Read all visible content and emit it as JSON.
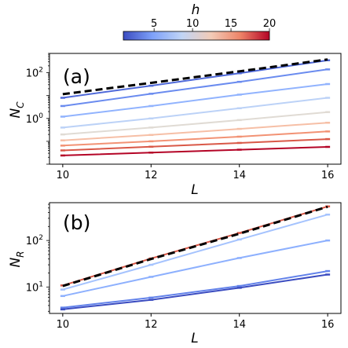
{
  "colorbar": {
    "label": "h",
    "range": [
      1,
      20
    ],
    "ticks": [
      "5",
      "10",
      "15",
      "20"
    ],
    "cmap": [
      "#3b4cc0",
      "#7ea1f9",
      "#c0d4f5",
      "#f2cbb7",
      "#ee8468",
      "#b40426"
    ]
  },
  "chart_data": [
    {
      "type": "line",
      "panel_label": "(a)",
      "xlabel": "L",
      "ylabel": "N_C",
      "ylabel_main": "N",
      "ylabel_sub": "C",
      "yscale": "log",
      "xlim": [
        9.7,
        16.3
      ],
      "ylim": [
        0.01,
        700
      ],
      "xticks": [
        "10",
        "12",
        "14",
        "16"
      ],
      "yticks": [
        {
          "value": 100,
          "base": "10",
          "exp": "2"
        },
        {
          "value": 1,
          "base": "10",
          "exp": "0"
        }
      ],
      "x": [
        10,
        12,
        14,
        16
      ],
      "reference": {
        "style": "black dashed",
        "values": [
          11.5,
          36,
          115,
          380
        ]
      },
      "series": [
        {
          "h": 1,
          "color": "#4f69d9",
          "values": [
            8.0,
            27,
            95,
            350
          ]
        },
        {
          "h": 3,
          "color": "#6a8bef",
          "values": [
            3.5,
            12,
            40,
            140
          ]
        },
        {
          "h": 5,
          "color": "#91b3fe",
          "values": [
            1.2,
            3.5,
            11,
            32
          ]
        },
        {
          "h": 7,
          "color": "#bcd2f7",
          "values": [
            0.4,
            1.0,
            2.8,
            8.0
          ]
        },
        {
          "h": 9,
          "color": "#e0dbd4",
          "values": [
            0.2,
            0.4,
            0.85,
            1.9
          ]
        },
        {
          "h": 11,
          "color": "#f6bfa6",
          "values": [
            0.11,
            0.19,
            0.35,
            0.65
          ]
        },
        {
          "h": 13,
          "color": "#f29274",
          "values": [
            0.065,
            0.1,
            0.16,
            0.27
          ]
        },
        {
          "h": 16,
          "color": "#d95847",
          "values": [
            0.04,
            0.058,
            0.085,
            0.125
          ]
        },
        {
          "h": 20,
          "color": "#b40426",
          "values": [
            0.024,
            0.032,
            0.043,
            0.057
          ]
        }
      ]
    },
    {
      "type": "line",
      "panel_label": "(b)",
      "xlabel": "L",
      "ylabel": "N_R",
      "ylabel_main": "N",
      "ylabel_sub": "R",
      "yscale": "log",
      "xlim": [
        9.7,
        16.3
      ],
      "ylim": [
        2.7,
        650
      ],
      "xticks": [
        "10",
        "12",
        "14",
        "16"
      ],
      "yticks": [
        {
          "value": 100,
          "base": "10",
          "exp": "2"
        },
        {
          "value": 10,
          "base": "10",
          "exp": "1"
        }
      ],
      "x": [
        10,
        12,
        14,
        16
      ],
      "reference": {
        "style": "black dashed",
        "values": [
          10.5,
          40,
          140,
          530
        ]
      },
      "series": [
        {
          "h": 20,
          "color": "#d95847",
          "values": [
            10.8,
            41,
            145,
            540
          ]
        },
        {
          "h": 7,
          "color": "#a5c3fe",
          "values": [
            8.8,
            30,
            105,
            360
          ]
        },
        {
          "h": 6,
          "color": "#8db0fe",
          "values": [
            6.4,
            16.5,
            42,
            100
          ]
        },
        {
          "h": 3,
          "color": "#6282ea",
          "values": [
            3.6,
            5.9,
            10.5,
            22
          ]
        },
        {
          "h": 1,
          "color": "#3b4cc0",
          "values": [
            3.3,
            5.3,
            9.6,
            18.5
          ]
        }
      ]
    }
  ]
}
